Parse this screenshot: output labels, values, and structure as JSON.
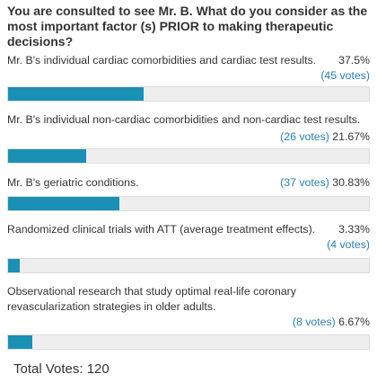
{
  "poll": {
    "question": "You are consulted to see Mr. B. What do you consider as the most important factor (s) PRIOR to making therapeutic decisions?",
    "options": [
      {
        "label": "Mr. B's individual cardiac comorbidities and cardiac test results.",
        "percent": "37.5%",
        "votes": "(45 votes)",
        "fill_fraction": 0.375
      },
      {
        "label": "Mr. B's individual non-cardiac comorbidities and non-cardiac test results.",
        "percent": "21.67%",
        "votes": "(26 votes)",
        "fill_fraction": 0.2167
      },
      {
        "label": "Mr. B's geriatric conditions.",
        "percent": "30.83%",
        "votes": "(37 votes)",
        "fill_fraction": 0.3083
      },
      {
        "label": "Randomized clinical trials with ATT (average treatment effects).",
        "percent": "3.33%",
        "votes": "(4 votes)",
        "fill_fraction": 0.0333
      },
      {
        "label": "Observational research that study optimal real-life coronary revascularization strategies in older adults.",
        "percent": "6.67%",
        "votes": "(8 votes)",
        "fill_fraction": 0.0667
      }
    ],
    "total_votes": "Total Votes: 120",
    "colors": {
      "bar_fill": "#1a91b4",
      "bar_track": "#eeeeee",
      "votes_link": "#2a7fb0"
    }
  }
}
